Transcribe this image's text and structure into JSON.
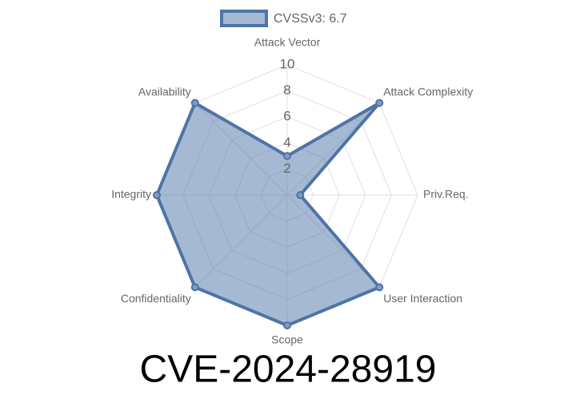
{
  "chart_data": {
    "type": "radar",
    "title": "CVE-2024-28919",
    "categories": [
      "Attack Vector",
      "Attack Complexity",
      "Priv.Req.",
      "User Interaction",
      "Scope",
      "Confidentiality",
      "Integrity",
      "Availability"
    ],
    "series": [
      {
        "name": "CVSSv3: 6.7",
        "color": "#4e74a6",
        "values": [
          3,
          10,
          1,
          10,
          10,
          10,
          10,
          10
        ]
      }
    ],
    "ylim": [
      0,
      10
    ],
    "yticks": [
      2,
      4,
      6,
      8,
      10
    ],
    "grid": true,
    "legend": "top"
  }
}
